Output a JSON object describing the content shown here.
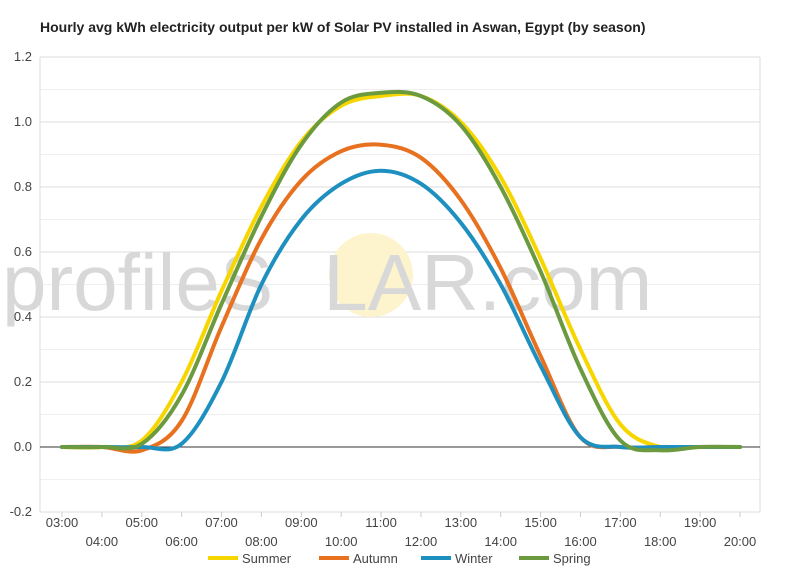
{
  "chart_data": {
    "type": "line",
    "title": "Hourly avg kWh electricity output per kW of Solar PV installed in Aswan, Egypt (by season)",
    "xlabel": "",
    "ylabel": "",
    "ylim": [
      -0.2,
      1.2
    ],
    "yticks": [
      "-0.2",
      "0.0",
      "0.2",
      "0.4",
      "0.6",
      "0.8",
      "1.0",
      "1.2"
    ],
    "xticks": [
      "03:00",
      "04:00",
      "05:00",
      "06:00",
      "07:00",
      "08:00",
      "09:00",
      "10:00",
      "11:00",
      "12:00",
      "13:00",
      "14:00",
      "15:00",
      "16:00",
      "17:00",
      "18:00",
      "19:00",
      "20:00"
    ],
    "grid": true,
    "legend_position": "bottom",
    "x": [
      "03:00",
      "04:00",
      "05:00",
      "06:00",
      "07:00",
      "08:00",
      "09:00",
      "10:00",
      "11:00",
      "12:00",
      "13:00",
      "14:00",
      "15:00",
      "16:00",
      "17:00",
      "18:00",
      "19:00",
      "20:00"
    ],
    "series": [
      {
        "name": "Summer",
        "color": "#f7d600",
        "values": [
          0,
          0,
          0.02,
          0.2,
          0.48,
          0.74,
          0.94,
          1.05,
          1.08,
          1.08,
          1.0,
          0.83,
          0.58,
          0.3,
          0.07,
          0,
          0,
          0
        ]
      },
      {
        "name": "Autumn",
        "color": "#e8711f",
        "values": [
          0,
          0,
          -0.01,
          0.08,
          0.37,
          0.64,
          0.82,
          0.91,
          0.93,
          0.89,
          0.76,
          0.55,
          0.28,
          0.03,
          0,
          0,
          0,
          0
        ]
      },
      {
        "name": "Winter",
        "color": "#1e90c0",
        "values": [
          0,
          0,
          0,
          0.01,
          0.2,
          0.5,
          0.7,
          0.81,
          0.85,
          0.81,
          0.69,
          0.5,
          0.25,
          0.03,
          0,
          0,
          0,
          0
        ]
      },
      {
        "name": "Spring",
        "color": "#6b9a3f",
        "values": [
          0,
          0,
          0.01,
          0.16,
          0.44,
          0.71,
          0.93,
          1.06,
          1.09,
          1.08,
          0.99,
          0.8,
          0.54,
          0.24,
          0.02,
          -0.01,
          0,
          0
        ]
      }
    ]
  },
  "watermark": {
    "left": "profile",
    "middle": "S",
    "right": "LAR.com",
    "sun_color": "#fdf3cc"
  }
}
